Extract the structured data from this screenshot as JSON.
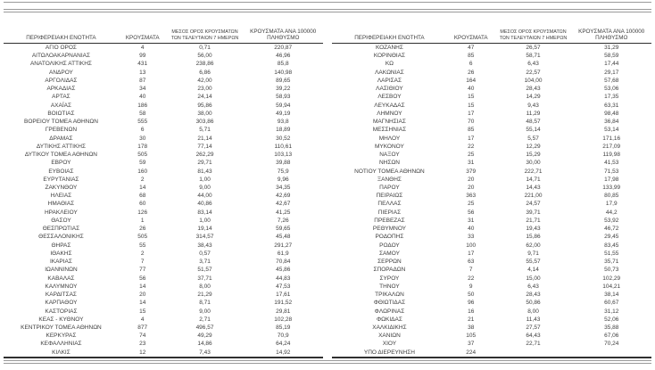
{
  "columns": [
    {
      "label": "ΠΕΡΙΦΕΡΕΙΑΚΗ ΕΝΟΤΗΤΑ"
    },
    {
      "label": "ΚΡΟΥΣΜΑΤΑ"
    },
    {
      "label": "ΜΕΣΟΣ ΟΡΟΣ ΚΡΟΥΣΜΑΤΩΝ ΤΩΝ ΤΕΛΕΥΤΑΙΩΝ 7 ΗΜΕΡΩΝ"
    },
    {
      "label": "ΚΡΟΥΣΜΑΤΑ ΑΝΑ 100000 ΠΛΗΘΥΣΜΟ"
    }
  ],
  "tables": [
    {
      "rows": [
        [
          "ΑΓΙΟ ΟΡΟΣ",
          "4",
          "0,71",
          "220,87"
        ],
        [
          "ΑΙΤΩΛΟΑΚΑΡΝΑΝΙΑΣ",
          "99",
          "56,00",
          "46,96"
        ],
        [
          "ΑΝΑΤΟΛΙΚΗΣ ΑΤΤΙΚΗΣ",
          "431",
          "238,86",
          "85,8"
        ],
        [
          "ΑΝΔΡΟΥ",
          "13",
          "6,86",
          "140,98"
        ],
        [
          "ΑΡΓΟΛΙΔΑΣ",
          "87",
          "42,00",
          "89,65"
        ],
        [
          "ΑΡΚΑΔΙΑΣ",
          "34",
          "23,00",
          "39,22"
        ],
        [
          "ΑΡΤΑΣ",
          "40",
          "24,14",
          "58,93"
        ],
        [
          "ΑΧΑΪΑΣ",
          "186",
          "95,86",
          "59,94"
        ],
        [
          "ΒΟΙΩΤΙΑΣ",
          "58",
          "38,00",
          "49,19"
        ],
        [
          "ΒΟΡΕΙΟΥ ΤΟΜΕΑ ΑΘΗΝΩΝ",
          "555",
          "303,86",
          "93,8"
        ],
        [
          "ΓΡΕΒΕΝΩΝ",
          "6",
          "5,71",
          "18,89"
        ],
        [
          "ΔΡΑΜΑΣ",
          "30",
          "21,14",
          "30,52"
        ],
        [
          "ΔΥΤΙΚΗΣ ΑΤΤΙΚΗΣ",
          "178",
          "77,14",
          "110,61"
        ],
        [
          "ΔΥΤΙΚΟΥ ΤΟΜΕΑ ΑΘΗΝΩΝ",
          "505",
          "262,29",
          "103,13"
        ],
        [
          "ΕΒΡΟΥ",
          "59",
          "29,71",
          "39,88"
        ],
        [
          "ΕΥΒΟΙΑΣ",
          "160",
          "81,43",
          "75,9"
        ],
        [
          "ΕΥΡΥΤΑΝΙΑΣ",
          "2",
          "1,00",
          "9,96"
        ],
        [
          "ΖΑΚΥΝΘΟΥ",
          "14",
          "9,00",
          "34,35"
        ],
        [
          "ΗΛΕΙΑΣ",
          "68",
          "44,00",
          "42,69"
        ],
        [
          "ΗΜΑΘΙΑΣ",
          "60",
          "40,86",
          "42,67"
        ],
        [
          "ΗΡΑΚΛΕΙΟΥ",
          "126",
          "83,14",
          "41,25"
        ],
        [
          "ΘΑΣΟΥ",
          "1",
          "1,00",
          "7,26"
        ],
        [
          "ΘΕΣΠΡΩΤΙΑΣ",
          "26",
          "19,14",
          "59,65"
        ],
        [
          "ΘΕΣΣΑΛΟΝΙΚΗΣ",
          "505",
          "314,57",
          "45,48"
        ],
        [
          "ΘΗΡΑΣ",
          "55",
          "38,43",
          "291,27"
        ],
        [
          "ΙΘΑΚΗΣ",
          "2",
          "0,57",
          "61,9"
        ],
        [
          "ΙΚΑΡΙΑΣ",
          "7",
          "3,71",
          "70,84"
        ],
        [
          "ΙΩΑΝΝΙΝΩΝ",
          "77",
          "51,57",
          "45,86"
        ],
        [
          "ΚΑΒΑΛΑΣ",
          "56",
          "37,71",
          "44,83"
        ],
        [
          "ΚΑΛΥΜΝΟΥ",
          "14",
          "8,00",
          "47,53"
        ],
        [
          "ΚΑΡΔΙΤΣΑΣ",
          "20",
          "21,29",
          "17,61"
        ],
        [
          "ΚΑΡΠΑΘΟΥ",
          "14",
          "8,71",
          "191,52"
        ],
        [
          "ΚΑΣΤΟΡΙΑΣ",
          "15",
          "9,00",
          "29,81"
        ],
        [
          "ΚΕΑΣ - ΚΥΘΝΟΥ",
          "4",
          "2,71",
          "102,28"
        ],
        [
          "ΚΕΝΤΡΙΚΟΥ ΤΟΜΕΑ ΑΘΗΝΩΝ",
          "877",
          "496,57",
          "85,19"
        ],
        [
          "ΚΕΡΚΥΡΑΣ",
          "74",
          "49,29",
          "70,9"
        ],
        [
          "ΚΕΦΑΛΛΗΝΙΑΣ",
          "23",
          "14,86",
          "64,24"
        ],
        [
          "ΚΙΛΚΙΣ",
          "12",
          "7,43",
          "14,92"
        ]
      ]
    },
    {
      "rows": [
        [
          "ΚΟΖΑΝΗΣ",
          "47",
          "26,57",
          "31,29"
        ],
        [
          "ΚΟΡΙΝΘΙΑΣ",
          "85",
          "58,71",
          "58,59"
        ],
        [
          "ΚΩ",
          "6",
          "6,43",
          "17,44"
        ],
        [
          "ΛΑΚΩΝΙΑΣ",
          "26",
          "22,57",
          "29,17"
        ],
        [
          "ΛΑΡΙΣΑΣ",
          "164",
          "104,00",
          "57,68"
        ],
        [
          "ΛΑΣΙΘΙΟΥ",
          "40",
          "28,43",
          "53,06"
        ],
        [
          "ΛΕΣΒΟΥ",
          "15",
          "14,29",
          "17,35"
        ],
        [
          "ΛΕΥΚΑΔΑΣ",
          "15",
          "9,43",
          "63,31"
        ],
        [
          "ΛΗΜΝΟΥ",
          "17",
          "11,29",
          "98,48"
        ],
        [
          "ΜΑΓΝΗΣΙΑΣ",
          "70",
          "48,57",
          "36,84"
        ],
        [
          "ΜΕΣΣΗΝΙΑΣ",
          "85",
          "55,14",
          "53,14"
        ],
        [
          "ΜΗΛΟΥ",
          "17",
          "5,57",
          "171,16"
        ],
        [
          "ΜΥΚΟΝΟΥ",
          "22",
          "12,29",
          "217,09"
        ],
        [
          "ΝΑΞΟΥ",
          "25",
          "15,29",
          "119,98"
        ],
        [
          "ΝΗΣΩΝ",
          "31",
          "30,00",
          "41,53"
        ],
        [
          "ΝΟΤΙΟΥ ΤΟΜΕΑ ΑΘΗΝΩΝ",
          "379",
          "222,71",
          "71,53"
        ],
        [
          "ΞΑΝΘΗΣ",
          "20",
          "14,71",
          "17,98"
        ],
        [
          "ΠΑΡΟΥ",
          "20",
          "14,43",
          "133,99"
        ],
        [
          "ΠΕΙΡΑΙΩΣ",
          "363",
          "221,00",
          "80,85"
        ],
        [
          "ΠΕΛΛΑΣ",
          "25",
          "24,57",
          "17,9"
        ],
        [
          "ΠΙΕΡΙΑΣ",
          "56",
          "39,71",
          "44,2"
        ],
        [
          "ΠΡΕΒΕΖΑΣ",
          "31",
          "21,71",
          "53,92"
        ],
        [
          "ΡΕΘΥΜΝΟΥ",
          "40",
          "19,43",
          "46,72"
        ],
        [
          "ΡΟΔΟΠΗΣ",
          "33",
          "15,86",
          "29,45"
        ],
        [
          "ΡΟΔΟΥ",
          "100",
          "62,00",
          "83,45"
        ],
        [
          "ΣΑΜΟΥ",
          "17",
          "9,71",
          "51,55"
        ],
        [
          "ΣΕΡΡΩΝ",
          "63",
          "55,57",
          "35,71"
        ],
        [
          "ΣΠΟΡΑΔΩΝ",
          "7",
          "4,14",
          "50,73"
        ],
        [
          "ΣΥΡΟΥ",
          "22",
          "15,00",
          "102,29"
        ],
        [
          "ΤΗΝΟΥ",
          "9",
          "6,43",
          "104,21"
        ],
        [
          "ΤΡΙΚΑΛΩΝ",
          "50",
          "28,43",
          "38,14"
        ],
        [
          "ΦΘΙΩΤΙΔΑΣ",
          "96",
          "50,86",
          "60,67"
        ],
        [
          "ΦΛΩΡΙΝΑΣ",
          "16",
          "8,00",
          "31,12"
        ],
        [
          "ΦΩΚΙΔΑΣ",
          "21",
          "11,43",
          "52,06"
        ],
        [
          "ΧΑΛΚΙΔΙΚΗΣ",
          "38",
          "27,57",
          "35,88"
        ],
        [
          "ΧΑΝΙΩΝ",
          "105",
          "64,43",
          "67,06"
        ],
        [
          "ΧΙΟΥ",
          "37",
          "22,71",
          "70,24"
        ],
        [
          "ΥΠΟ ΔΙΕΡΕΥΝΗΣΗ",
          "224",
          "",
          ""
        ]
      ]
    }
  ],
  "colors": {
    "text": "#3d3d3d",
    "heavy_rule": "#2f2f2f",
    "light_rule": "#9a9a9a",
    "background": "#ffffff"
  }
}
